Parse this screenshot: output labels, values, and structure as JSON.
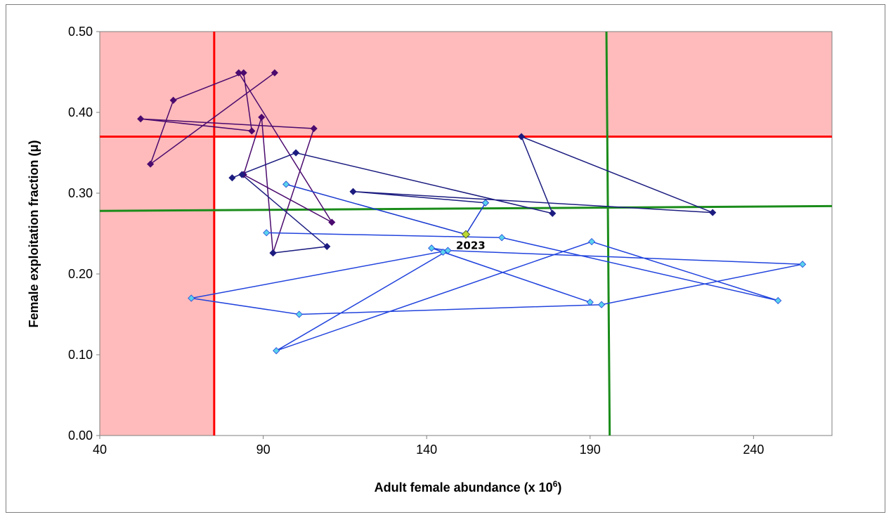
{
  "chart_data": {
    "type": "scatter",
    "title": "",
    "xlabel": "Adult female abundance (x 10",
    "xlabel_sup": "6",
    "xlabel_suffix": ")",
    "ylabel": "Female exploitation fraction (μ)",
    "xlim": [
      40,
      264
    ],
    "ylim": [
      0,
      0.5
    ],
    "x_ticks": [
      40,
      90,
      140,
      190,
      240
    ],
    "x_tick_labels": [
      "40",
      "90",
      "140",
      "190",
      "240"
    ],
    "y_ticks": [
      0,
      0.1,
      0.2,
      0.3,
      0.4,
      0.5
    ],
    "y_tick_labels": [
      "0.00",
      "0.10",
      "0.20",
      "0.30",
      "0.40",
      "0.50"
    ],
    "grid": false,
    "legend": "none",
    "shaded_zones": [
      {
        "x": [
          40,
          75
        ],
        "y": [
          0,
          0.5
        ],
        "color": "#ffbbbb"
      },
      {
        "x": [
          75,
          264
        ],
        "y": [
          0.37,
          0.5
        ],
        "color": "#ffbbbb"
      }
    ],
    "reference_lines": [
      {
        "name": "",
        "color": "#ff0000",
        "points": [
          [
            75,
            0
          ],
          [
            75,
            0.5
          ]
        ]
      },
      {
        "name": "",
        "color": "#ff0000",
        "points": [
          [
            40,
            0.37
          ],
          [
            264,
            0.37
          ]
        ]
      },
      {
        "name": "",
        "color": "#1a8c1a",
        "points": [
          [
            195,
            0.5
          ],
          [
            196,
            0
          ]
        ]
      },
      {
        "name": "",
        "color": "#1a8c1a",
        "points": [
          [
            40,
            0.278
          ],
          [
            264,
            0.284
          ]
        ]
      }
    ],
    "series": [
      {
        "color": "#4b0a6e",
        "marker": "#4b0a6e",
        "points": [
          [
            93.5,
            0.449
          ],
          [
            55.5,
            0.336
          ],
          [
            62.5,
            0.415
          ],
          [
            84,
            0.449
          ],
          [
            86.5,
            0.377
          ],
          [
            52.5,
            0.392
          ],
          [
            105.5,
            0.38
          ],
          [
            93,
            0.226
          ],
          [
            89.5,
            0.394
          ],
          [
            84,
            0.323
          ],
          [
            111,
            0.264
          ],
          [
            82.5,
            0.449
          ]
        ]
      },
      {
        "color": "#1c1c80",
        "marker": "#1c1c80",
        "points": [
          [
            80.5,
            0.319
          ],
          [
            100,
            0.35
          ],
          [
            178.5,
            0.275
          ],
          [
            169,
            0.37
          ],
          [
            227.5,
            0.276
          ],
          [
            117.5,
            0.302
          ],
          [
            158,
            0.288
          ]
        ]
      },
      {
        "color": "#1a3ad0",
        "marker": "#5ad2ec",
        "points": [
          [
            97,
            0.311
          ],
          [
            152,
            0.249
          ],
          [
            158,
            0.288
          ]
        ]
      },
      {
        "color": "#2244dd",
        "marker": "#5ad2ec",
        "points": [
          [
            91,
            0.251
          ],
          [
            163,
            0.245
          ],
          [
            247.5,
            0.167
          ],
          [
            190.5,
            0.24
          ],
          [
            94,
            0.105
          ],
          [
            146.5,
            0.229
          ],
          [
            68,
            0.17
          ],
          [
            101,
            0.15
          ],
          [
            193.5,
            0.162
          ],
          [
            255,
            0.212
          ],
          [
            146.5,
            0.229
          ],
          [
            141.5,
            0.232
          ],
          [
            190,
            0.165
          ],
          [
            145,
            0.227
          ]
        ]
      },
      {
        "color": "#1c1c80",
        "marker": "#1c1c80",
        "points": [
          [
            83.5,
            0.323
          ],
          [
            109.5,
            0.234
          ],
          [
            93,
            0.226
          ]
        ]
      }
    ],
    "highlight": {
      "label": "2023",
      "x": 152,
      "y": 0.249,
      "color": "#bcd832"
    }
  }
}
